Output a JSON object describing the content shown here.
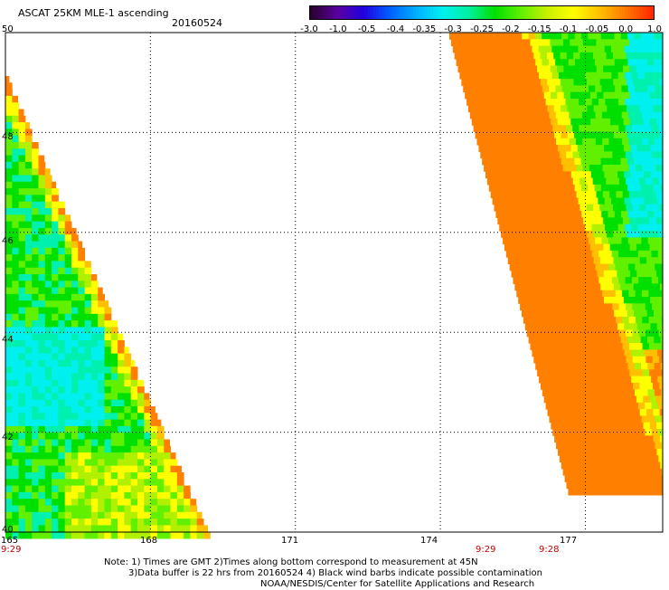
{
  "header": {
    "title": "ASCAT 25KM MLE-1 ascending",
    "date": "20160524"
  },
  "colorbar": {
    "tick_labels": [
      "-3.0",
      "-1.0",
      "-0.5",
      "-0.4",
      "-0.35",
      "-0.3",
      "-0.25",
      "-0.2",
      "-0.15",
      "-0.1",
      "-0.05",
      "0.0",
      "1.0"
    ],
    "colors": [
      "#2a0030",
      "#5a00a0",
      "#2000e0",
      "#0060ff",
      "#00b0ff",
      "#00f0f0",
      "#00f0a0",
      "#00e000",
      "#60f000",
      "#c8f000",
      "#ffff00",
      "#ffc000",
      "#ff7800",
      "#ff2800"
    ]
  },
  "axes": {
    "lat_labels": [
      "50",
      "48",
      "46",
      "44",
      "42",
      "40"
    ],
    "lon_labels": [
      "165",
      "168",
      "171",
      "174",
      "177"
    ]
  },
  "times": {
    "left": "9:29",
    "middle": "9:29",
    "right": "9:28"
  },
  "note": {
    "line1": "Note: 1) Times are GMT 2)Times along bottom correspond to measurement at 45N",
    "line2": "3)Data buffer is 22 hrs from 20160524 4) Black wind barbs indicate possible contamination",
    "line3": "NOAA/NESDIS/Center for Satellite Applications and Research"
  },
  "map_data": {
    "lat_range": [
      40,
      50
    ],
    "lon_range": [
      165,
      178.6
    ],
    "grid_spacing_deg": {
      "lat": 2,
      "lon": 3
    },
    "swaths": [
      {
        "name": "left-swath",
        "time": "9:29",
        "dominant_range": "-0.3 to -0.1",
        "edge_range": "-0.05 to 0.0"
      },
      {
        "name": "right-swath",
        "time": "9:28",
        "dominant_range": "0.0 to 1.0",
        "east_range": "-0.25 to -0.1"
      }
    ]
  }
}
